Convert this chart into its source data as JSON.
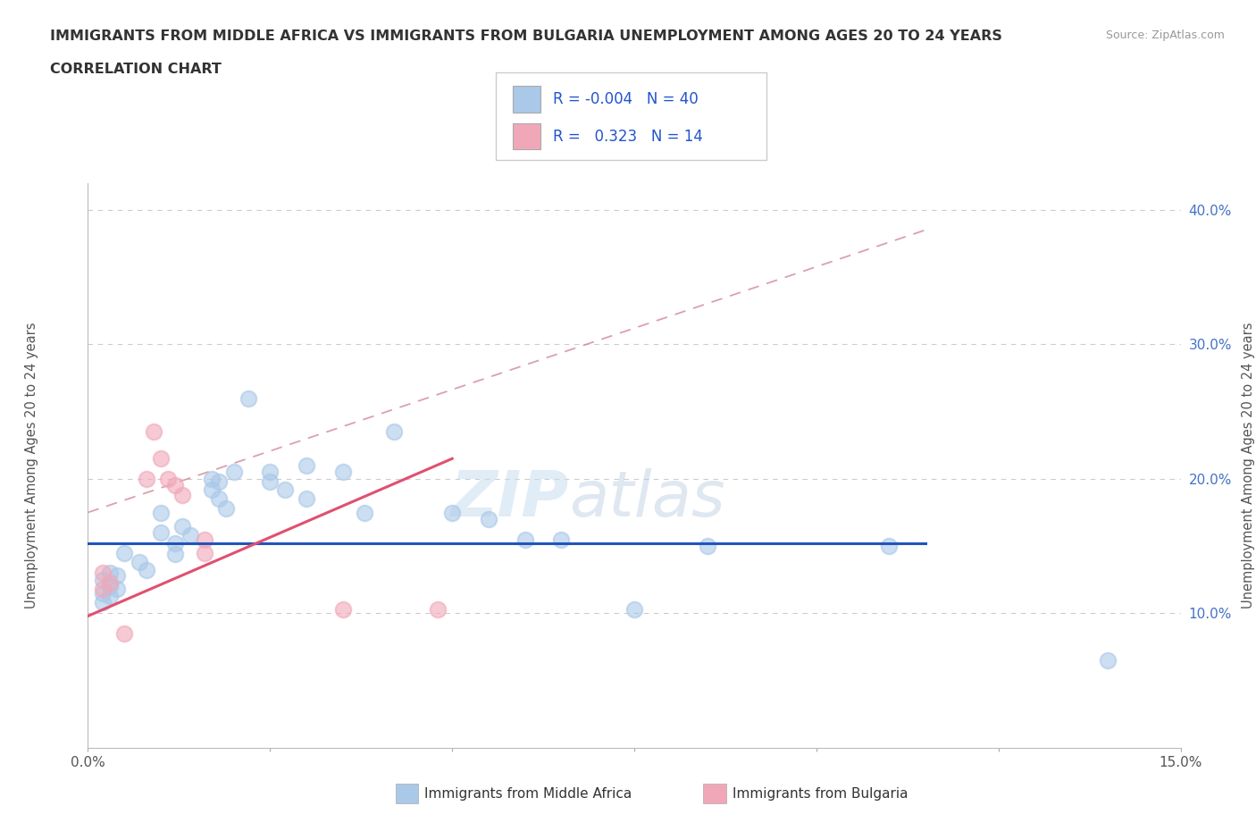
{
  "title_line1": "IMMIGRANTS FROM MIDDLE AFRICA VS IMMIGRANTS FROM BULGARIA UNEMPLOYMENT AMONG AGES 20 TO 24 YEARS",
  "title_line2": "CORRELATION CHART",
  "source": "Source: ZipAtlas.com",
  "ylabel": "Unemployment Among Ages 20 to 24 years",
  "xlim": [
    0.0,
    0.15
  ],
  "ylim": [
    0.0,
    0.42
  ],
  "xticks": [
    0.0,
    0.025,
    0.05,
    0.075,
    0.1,
    0.125,
    0.15
  ],
  "xtick_labels": [
    "0.0%",
    "",
    "",
    "",
    "",
    "",
    "15.0%"
  ],
  "ytick_positions": [
    0.0,
    0.1,
    0.2,
    0.3,
    0.4
  ],
  "ytick_labels": [
    "",
    "10.0%",
    "20.0%",
    "30.0%",
    "40.0%"
  ],
  "blue_r": "-0.004",
  "blue_n": "40",
  "pink_r": "0.323",
  "pink_n": "14",
  "blue_color": "#aac8e8",
  "pink_color": "#f0a8b8",
  "blue_line_color": "#2255bb",
  "pink_line_color": "#e05070",
  "diag_color": "#d08090",
  "watermark_zip": "ZIP",
  "watermark_atlas": "atlas",
  "legend_r_color": "#2255cc",
  "blue_dots": [
    [
      0.002,
      0.125
    ],
    [
      0.002,
      0.115
    ],
    [
      0.002,
      0.108
    ],
    [
      0.003,
      0.13
    ],
    [
      0.003,
      0.12
    ],
    [
      0.003,
      0.113
    ],
    [
      0.004,
      0.128
    ],
    [
      0.004,
      0.118
    ],
    [
      0.005,
      0.145
    ],
    [
      0.007,
      0.138
    ],
    [
      0.008,
      0.132
    ],
    [
      0.01,
      0.175
    ],
    [
      0.01,
      0.16
    ],
    [
      0.012,
      0.152
    ],
    [
      0.012,
      0.144
    ],
    [
      0.013,
      0.165
    ],
    [
      0.014,
      0.158
    ],
    [
      0.017,
      0.2
    ],
    [
      0.017,
      0.192
    ],
    [
      0.018,
      0.198
    ],
    [
      0.018,
      0.185
    ],
    [
      0.019,
      0.178
    ],
    [
      0.02,
      0.205
    ],
    [
      0.022,
      0.26
    ],
    [
      0.025,
      0.205
    ],
    [
      0.025,
      0.198
    ],
    [
      0.027,
      0.192
    ],
    [
      0.03,
      0.21
    ],
    [
      0.03,
      0.185
    ],
    [
      0.035,
      0.205
    ],
    [
      0.038,
      0.175
    ],
    [
      0.042,
      0.235
    ],
    [
      0.05,
      0.175
    ],
    [
      0.055,
      0.17
    ],
    [
      0.06,
      0.155
    ],
    [
      0.065,
      0.155
    ],
    [
      0.075,
      0.103
    ],
    [
      0.085,
      0.15
    ],
    [
      0.11,
      0.15
    ],
    [
      0.14,
      0.065
    ]
  ],
  "pink_dots": [
    [
      0.002,
      0.13
    ],
    [
      0.002,
      0.118
    ],
    [
      0.003,
      0.123
    ],
    [
      0.005,
      0.085
    ],
    [
      0.008,
      0.2
    ],
    [
      0.009,
      0.235
    ],
    [
      0.01,
      0.215
    ],
    [
      0.011,
      0.2
    ],
    [
      0.012,
      0.195
    ],
    [
      0.013,
      0.188
    ],
    [
      0.016,
      0.155
    ],
    [
      0.016,
      0.145
    ],
    [
      0.035,
      0.103
    ],
    [
      0.048,
      0.103
    ]
  ],
  "blue_line_x": [
    0.0,
    0.115
  ],
  "blue_line_y": [
    0.152,
    0.152
  ],
  "pink_line_x": [
    0.0,
    0.05
  ],
  "pink_line_y": [
    0.098,
    0.215
  ],
  "diag_line_x": [
    0.0,
    0.115
  ],
  "diag_line_y": [
    0.175,
    0.385
  ]
}
